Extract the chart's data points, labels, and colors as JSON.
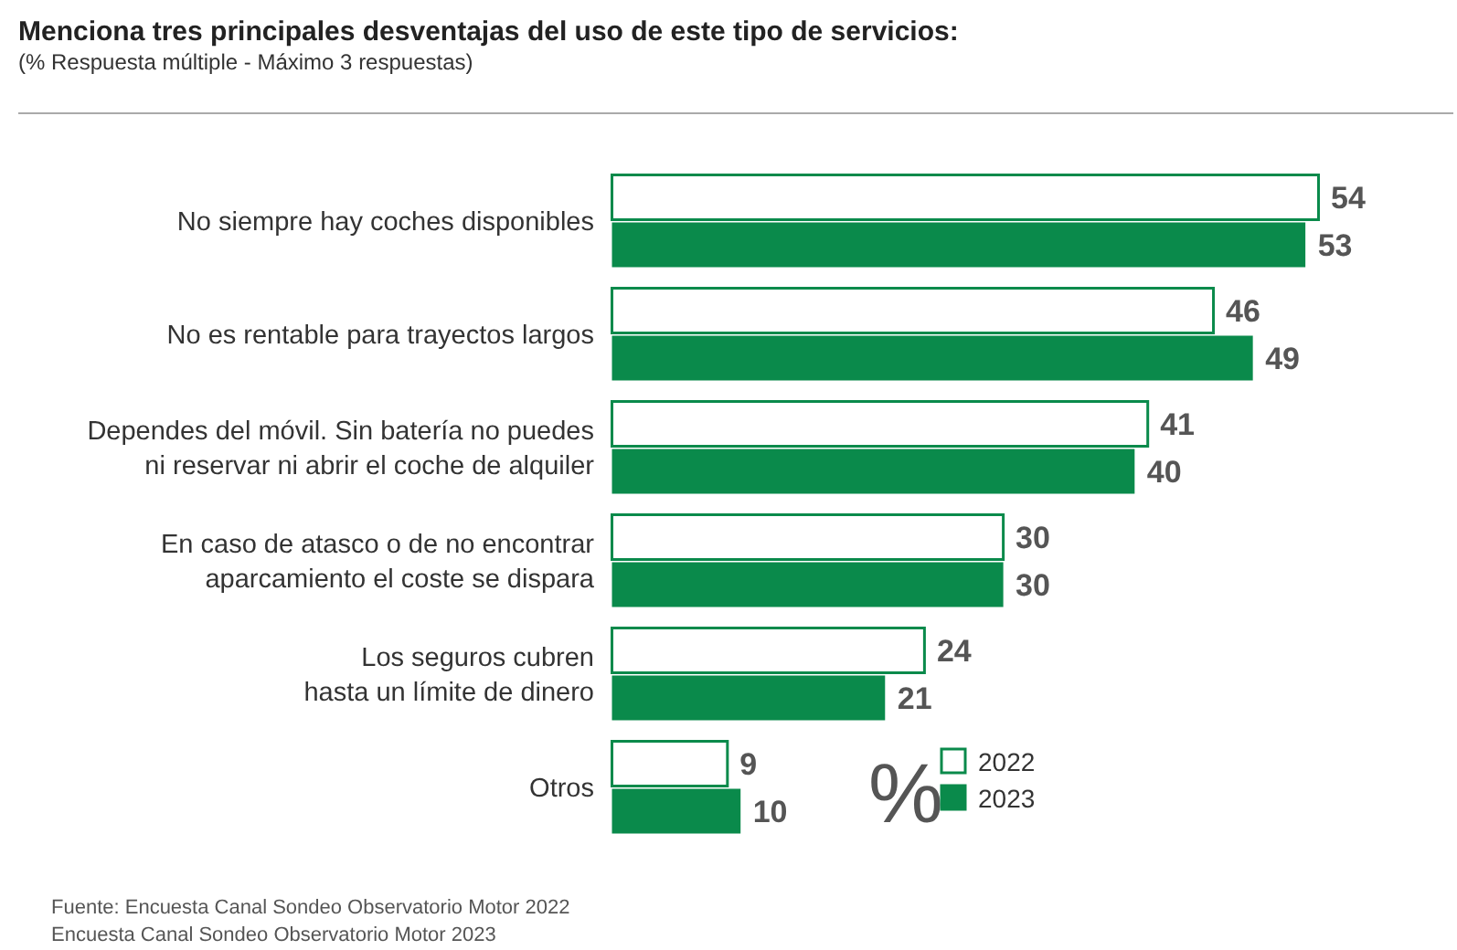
{
  "chart_data": {
    "type": "bar",
    "orientation": "horizontal",
    "title": "Menciona tres principales desventajas del uso de este tipo de servicios:",
    "subtitle": "(% Respuesta múltiple - Máximo 3 respuestas)",
    "categories": [
      "No siempre hay coches disponibles",
      "No es rentable para trayectos largos",
      "Dependes del móvil. Sin batería no puedes\nni reservar ni abrir el coche de alquiler",
      "En caso de atasco o de no encontrar\naparcamiento el coste se dispara",
      "Los seguros cubren\nhasta un límite de dinero",
      "Otros"
    ],
    "series": [
      {
        "name": "2022",
        "color": "#ffffff",
        "values": [
          54,
          46,
          41,
          30,
          24,
          9
        ]
      },
      {
        "name": "2023",
        "color": "#0a8a4b",
        "values": [
          53,
          49,
          40,
          30,
          21,
          10
        ]
      }
    ],
    "data_labels": true,
    "legend": "bottom right",
    "legend_title": "%",
    "annotations": [
      "Fuente: Encuesta Canal Sondeo Observatorio Motor 2022",
      "Encuesta Canal Sondeo Observatorio Motor 2023"
    ]
  }
}
